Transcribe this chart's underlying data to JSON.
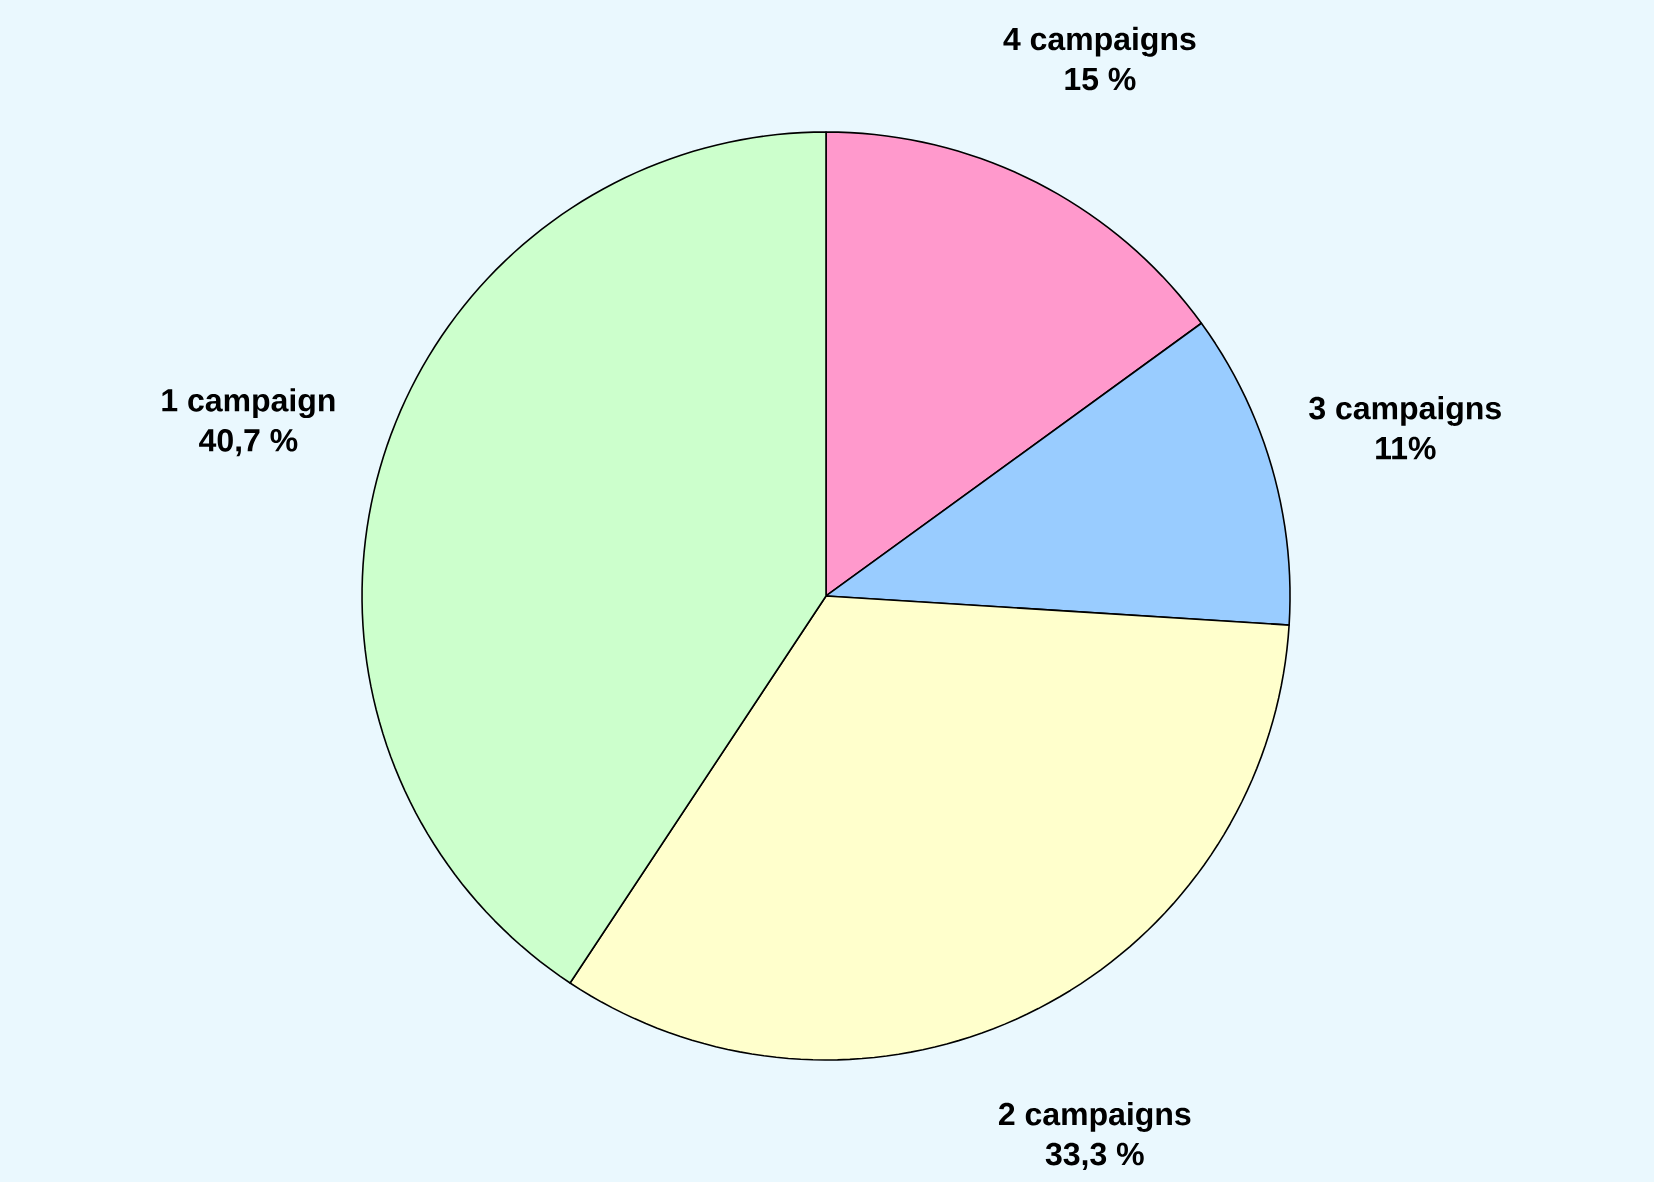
{
  "chart_data": {
    "type": "pie",
    "categories": [
      "4 campaigns",
      "3 campaigns",
      "2 campaigns",
      "1 campaign"
    ],
    "values": [
      15,
      11,
      33.3,
      40.7
    ],
    "value_labels": [
      "15 %",
      "11%",
      "33,3 %",
      "40,7 %"
    ],
    "colors": [
      "#ff99cc",
      "#99ccff",
      "#ffffcc",
      "#ccffcc"
    ]
  }
}
